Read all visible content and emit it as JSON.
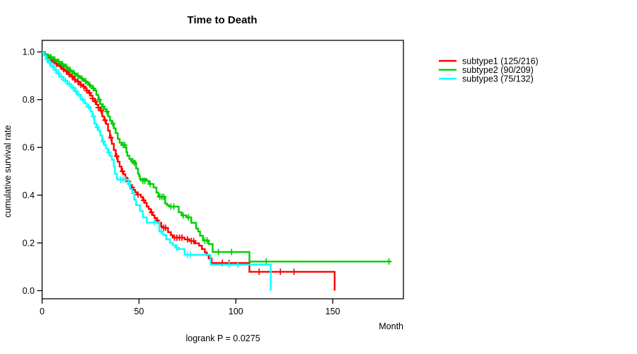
{
  "figure": {
    "background": "#FFFFFF",
    "axis_color": "#000000",
    "text_color": "#000000"
  },
  "chart_data": {
    "type": "line",
    "chart_kind": "kaplan_meier_survival_step",
    "title": "Time to Death",
    "xlabel": "Month",
    "ylabel": "cumulative survival rate",
    "annotation": "logrank P = 0.0275",
    "grid": false,
    "legend_position": "right-outside",
    "xlim": [
      0,
      186
    ],
    "ylim": [
      0,
      1
    ],
    "x_ticks": [
      {
        "value": 0,
        "label": "0"
      },
      {
        "value": 50,
        "label": "50"
      },
      {
        "value": 100,
        "label": "100"
      },
      {
        "value": 150,
        "label": "150"
      }
    ],
    "y_ticks": [
      {
        "value": 1.0,
        "label": "1.0"
      },
      {
        "value": 0.8,
        "label": "0.8"
      },
      {
        "value": 0.6,
        "label": "0.6"
      },
      {
        "value": 0.4,
        "label": "0.4"
      },
      {
        "value": 0.2,
        "label": "0.2"
      },
      {
        "value": 0.0,
        "label": "0.0"
      }
    ],
    "series": [
      {
        "name": "subtype1",
        "legend_label": "subtype1 (125/216)",
        "events": 125,
        "total": 216,
        "color": "#FF0000",
        "points": [
          [
            0,
            1.0
          ],
          [
            1,
            0.99
          ],
          [
            2,
            0.985
          ],
          [
            3,
            0.976
          ],
          [
            4,
            0.97
          ],
          [
            5,
            0.962
          ],
          [
            6,
            0.957
          ],
          [
            7,
            0.95
          ],
          [
            8,
            0.945
          ],
          [
            9,
            0.94
          ],
          [
            10,
            0.934
          ],
          [
            11,
            0.927
          ],
          [
            12,
            0.92
          ],
          [
            13,
            0.912
          ],
          [
            14,
            0.905
          ],
          [
            15,
            0.897
          ],
          [
            16,
            0.89
          ],
          [
            17,
            0.883
          ],
          [
            18,
            0.876
          ],
          [
            19,
            0.869
          ],
          [
            20,
            0.862
          ],
          [
            21,
            0.855
          ],
          [
            22,
            0.848
          ],
          [
            23,
            0.838
          ],
          [
            24,
            0.828
          ],
          [
            25,
            0.817
          ],
          [
            26,
            0.805
          ],
          [
            27,
            0.792
          ],
          [
            28,
            0.779
          ],
          [
            29,
            0.767
          ],
          [
            30,
            0.754
          ],
          [
            31,
            0.73
          ],
          [
            32,
            0.714
          ],
          [
            33,
            0.698
          ],
          [
            34,
            0.67
          ],
          [
            35,
            0.641
          ],
          [
            36,
            0.615
          ],
          [
            37,
            0.589
          ],
          [
            38,
            0.563
          ],
          [
            39,
            0.54
          ],
          [
            40,
            0.52
          ],
          [
            41,
            0.5
          ],
          [
            42,
            0.487
          ],
          [
            43,
            0.473
          ],
          [
            44,
            0.458
          ],
          [
            45,
            0.444
          ],
          [
            46,
            0.432
          ],
          [
            47,
            0.422
          ],
          [
            48,
            0.412
          ],
          [
            49,
            0.402
          ],
          [
            51,
            0.392
          ],
          [
            52,
            0.378
          ],
          [
            53,
            0.368
          ],
          [
            54,
            0.352
          ],
          [
            55,
            0.342
          ],
          [
            56,
            0.328
          ],
          [
            57,
            0.316
          ],
          [
            58,
            0.304
          ],
          [
            59,
            0.294
          ],
          [
            60,
            0.284
          ],
          [
            61.5,
            0.269
          ],
          [
            62.5,
            0.263
          ],
          [
            65,
            0.245
          ],
          [
            66.5,
            0.232
          ],
          [
            67.5,
            0.222
          ],
          [
            73.5,
            0.215
          ],
          [
            76,
            0.208
          ],
          [
            79,
            0.198
          ],
          [
            81,
            0.188
          ],
          [
            82.5,
            0.174
          ],
          [
            84,
            0.16
          ],
          [
            85,
            0.149
          ],
          [
            86,
            0.135
          ],
          [
            87.5,
            0.116
          ],
          [
            107,
            0.079
          ],
          [
            151,
            0
          ]
        ],
        "censors": [
          [
            3.5,
            0.976
          ],
          [
            5.5,
            0.962
          ],
          [
            7.5,
            0.95
          ],
          [
            9.5,
            0.94
          ],
          [
            11,
            0.927
          ],
          [
            12.5,
            0.92
          ],
          [
            14,
            0.905
          ],
          [
            15.5,
            0.897
          ],
          [
            17,
            0.883
          ],
          [
            18.5,
            0.876
          ],
          [
            20,
            0.862
          ],
          [
            21.5,
            0.855
          ],
          [
            23,
            0.838
          ],
          [
            24.5,
            0.828
          ],
          [
            26,
            0.805
          ],
          [
            27.5,
            0.792
          ],
          [
            29,
            0.767
          ],
          [
            30.5,
            0.754
          ],
          [
            32.5,
            0.714
          ],
          [
            35.5,
            0.641
          ],
          [
            38.5,
            0.563
          ],
          [
            41.5,
            0.5
          ],
          [
            44.5,
            0.458
          ],
          [
            46.5,
            0.432
          ],
          [
            49.5,
            0.402
          ],
          [
            52.5,
            0.378
          ],
          [
            56.5,
            0.328
          ],
          [
            59.5,
            0.294
          ],
          [
            62.8,
            0.263
          ],
          [
            63.8,
            0.263
          ],
          [
            68.3,
            0.222
          ],
          [
            69.6,
            0.222
          ],
          [
            70.9,
            0.222
          ],
          [
            72.2,
            0.222
          ],
          [
            75,
            0.215
          ],
          [
            77,
            0.208
          ],
          [
            78.2,
            0.208
          ],
          [
            93,
            0.116
          ],
          [
            96.5,
            0.116
          ],
          [
            112,
            0.079
          ],
          [
            123,
            0.079
          ],
          [
            130,
            0.079
          ]
        ]
      },
      {
        "name": "subtype2",
        "legend_label": "subtype2 (90/209)",
        "events": 90,
        "total": 209,
        "color": "#00CD00",
        "points": [
          [
            0,
            1.0
          ],
          [
            1.5,
            0.99
          ],
          [
            3,
            0.984
          ],
          [
            4,
            0.979
          ],
          [
            5,
            0.974
          ],
          [
            6,
            0.969
          ],
          [
            7,
            0.964
          ],
          [
            8,
            0.959
          ],
          [
            9,
            0.954
          ],
          [
            10,
            0.949
          ],
          [
            11,
            0.944
          ],
          [
            12,
            0.937
          ],
          [
            13,
            0.93
          ],
          [
            14,
            0.924
          ],
          [
            15,
            0.918
          ],
          [
            16,
            0.911
          ],
          [
            17,
            0.905
          ],
          [
            18,
            0.9
          ],
          [
            19,
            0.894
          ],
          [
            20,
            0.889
          ],
          [
            21,
            0.883
          ],
          [
            22,
            0.877
          ],
          [
            23,
            0.87
          ],
          [
            24,
            0.862
          ],
          [
            25,
            0.855
          ],
          [
            26,
            0.847
          ],
          [
            27,
            0.839
          ],
          [
            28,
            0.82
          ],
          [
            29,
            0.8
          ],
          [
            30,
            0.781
          ],
          [
            31,
            0.771
          ],
          [
            32,
            0.761
          ],
          [
            33,
            0.75
          ],
          [
            34,
            0.73
          ],
          [
            35,
            0.712
          ],
          [
            36,
            0.7
          ],
          [
            37,
            0.68
          ],
          [
            38,
            0.66
          ],
          [
            39,
            0.636
          ],
          [
            40,
            0.62
          ],
          [
            41,
            0.61
          ],
          [
            43,
            0.6
          ],
          [
            43.5,
            0.58
          ],
          [
            44,
            0.565
          ],
          [
            45,
            0.552
          ],
          [
            46,
            0.542
          ],
          [
            48,
            0.535
          ],
          [
            48.5,
            0.512
          ],
          [
            49.5,
            0.49
          ],
          [
            50,
            0.48
          ],
          [
            50.5,
            0.467
          ],
          [
            54,
            0.46
          ],
          [
            55,
            0.447
          ],
          [
            57.5,
            0.432
          ],
          [
            59,
            0.411
          ],
          [
            60,
            0.393
          ],
          [
            63.5,
            0.365
          ],
          [
            64.5,
            0.358
          ],
          [
            65.5,
            0.352
          ],
          [
            70.5,
            0.328
          ],
          [
            72,
            0.315
          ],
          [
            74.5,
            0.307
          ],
          [
            77,
            0.284
          ],
          [
            79.5,
            0.26
          ],
          [
            80.5,
            0.248
          ],
          [
            81.5,
            0.23
          ],
          [
            83,
            0.21
          ],
          [
            86,
            0.195
          ],
          [
            88,
            0.162
          ],
          [
            107,
            0.122
          ],
          [
            180,
            0.122
          ]
        ],
        "censors": [
          [
            4.5,
            0.979
          ],
          [
            6.5,
            0.969
          ],
          [
            8.5,
            0.959
          ],
          [
            10.5,
            0.949
          ],
          [
            12.5,
            0.937
          ],
          [
            14.5,
            0.924
          ],
          [
            16.5,
            0.911
          ],
          [
            18.5,
            0.9
          ],
          [
            20.5,
            0.889
          ],
          [
            22.5,
            0.877
          ],
          [
            24.5,
            0.862
          ],
          [
            26.5,
            0.847
          ],
          [
            29.5,
            0.8
          ],
          [
            31.5,
            0.771
          ],
          [
            33.5,
            0.75
          ],
          [
            36.5,
            0.7
          ],
          [
            41.8,
            0.61
          ],
          [
            42.6,
            0.61
          ],
          [
            46.8,
            0.542
          ],
          [
            47.6,
            0.535
          ],
          [
            52,
            0.46
          ],
          [
            53,
            0.46
          ],
          [
            55.8,
            0.447
          ],
          [
            60.8,
            0.393
          ],
          [
            61.8,
            0.393
          ],
          [
            62.8,
            0.393
          ],
          [
            66.5,
            0.352
          ],
          [
            68,
            0.352
          ],
          [
            72.8,
            0.315
          ],
          [
            75.5,
            0.307
          ],
          [
            84,
            0.21
          ],
          [
            85.2,
            0.21
          ],
          [
            91,
            0.162
          ],
          [
            97.8,
            0.162
          ],
          [
            115.7,
            0.122
          ],
          [
            179,
            0.122
          ]
        ]
      },
      {
        "name": "subtype3",
        "legend_label": "subtype3 (75/132)",
        "events": 75,
        "total": 132,
        "color": "#00FFFF",
        "points": [
          [
            0,
            1.0
          ],
          [
            1,
            0.985
          ],
          [
            2,
            0.97
          ],
          [
            3,
            0.955
          ],
          [
            4.5,
            0.94
          ],
          [
            6,
            0.925
          ],
          [
            7.5,
            0.91
          ],
          [
            9,
            0.895
          ],
          [
            11,
            0.88
          ],
          [
            13,
            0.865
          ],
          [
            15,
            0.85
          ],
          [
            17,
            0.835
          ],
          [
            18,
            0.82
          ],
          [
            20,
            0.8
          ],
          [
            22,
            0.785
          ],
          [
            23,
            0.77
          ],
          [
            25,
            0.75
          ],
          [
            26,
            0.73
          ],
          [
            27,
            0.7
          ],
          [
            28,
            0.685
          ],
          [
            29,
            0.67
          ],
          [
            30,
            0.65
          ],
          [
            31,
            0.625
          ],
          [
            32,
            0.61
          ],
          [
            33,
            0.595
          ],
          [
            34,
            0.58
          ],
          [
            35,
            0.565
          ],
          [
            36,
            0.548
          ],
          [
            37,
            0.52
          ],
          [
            37.5,
            0.49
          ],
          [
            38.5,
            0.47
          ],
          [
            39,
            0.465
          ],
          [
            44.5,
            0.447
          ],
          [
            45.5,
            0.425
          ],
          [
            46.5,
            0.408
          ],
          [
            47.5,
            0.381
          ],
          [
            48.5,
            0.358
          ],
          [
            50.5,
            0.334
          ],
          [
            52,
            0.307
          ],
          [
            54,
            0.285
          ],
          [
            60.5,
            0.248
          ],
          [
            62.5,
            0.233
          ],
          [
            64,
            0.215
          ],
          [
            66,
            0.2
          ],
          [
            67.5,
            0.19
          ],
          [
            69,
            0.18
          ],
          [
            70,
            0.174
          ],
          [
            73.5,
            0.15
          ],
          [
            87,
            0.109
          ],
          [
            118,
            0
          ]
        ],
        "censors": [
          [
            2.5,
            0.97
          ],
          [
            4,
            0.955
          ],
          [
            5.5,
            0.94
          ],
          [
            7,
            0.925
          ],
          [
            8.5,
            0.91
          ],
          [
            10,
            0.895
          ],
          [
            12,
            0.88
          ],
          [
            14,
            0.865
          ],
          [
            16,
            0.85
          ],
          [
            17.5,
            0.835
          ],
          [
            19,
            0.82
          ],
          [
            21,
            0.8
          ],
          [
            24,
            0.77
          ],
          [
            26.5,
            0.73
          ],
          [
            28.5,
            0.685
          ],
          [
            31.5,
            0.625
          ],
          [
            34.5,
            0.58
          ],
          [
            40.5,
            0.465
          ],
          [
            41.8,
            0.465
          ],
          [
            43,
            0.465
          ],
          [
            45,
            0.447
          ],
          [
            58,
            0.285
          ],
          [
            61.5,
            0.248
          ],
          [
            69.5,
            0.18
          ],
          [
            75,
            0.15
          ],
          [
            76.5,
            0.15
          ],
          [
            96.5,
            0.109
          ],
          [
            101,
            0.109
          ]
        ]
      }
    ]
  }
}
